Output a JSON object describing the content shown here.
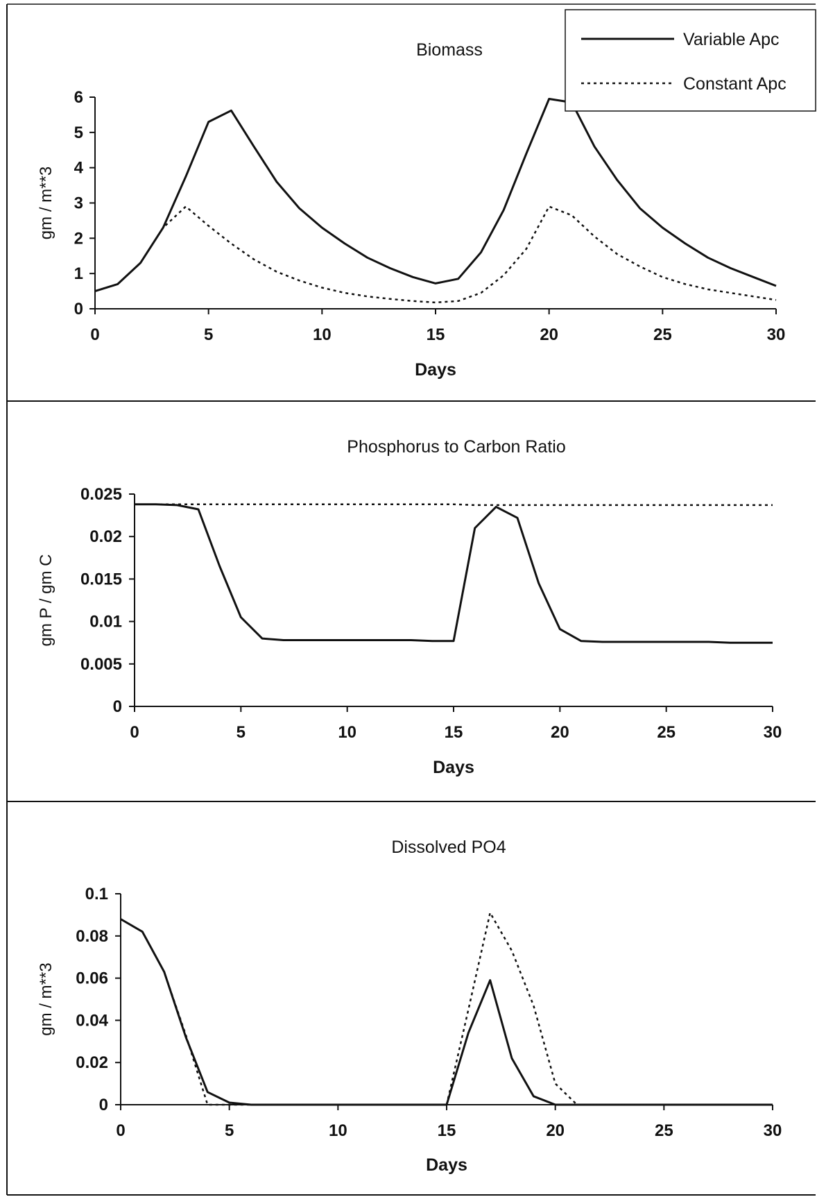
{
  "legend": {
    "items": [
      {
        "label": "Variable Apc",
        "style": "solid"
      },
      {
        "label": "Constant Apc",
        "style": "dotted"
      }
    ]
  },
  "chart_data": [
    {
      "type": "line",
      "title": "Biomass",
      "xlabel": "Days",
      "ylabel": "gm / m**3",
      "xlim": [
        0,
        30
      ],
      "ylim": [
        0,
        6
      ],
      "xticks": [
        0,
        5,
        10,
        15,
        20,
        25,
        30
      ],
      "yticks": [
        0,
        1,
        2,
        3,
        4,
        5,
        6
      ],
      "ytick_labels": [
        "0",
        "1",
        "2",
        "3",
        "4",
        "5",
        "6"
      ],
      "grid": false,
      "legend_position": "top-right",
      "x": [
        0,
        1,
        2,
        3,
        4,
        5,
        6,
        7,
        8,
        9,
        10,
        11,
        12,
        13,
        14,
        15,
        16,
        17,
        18,
        19,
        20,
        21,
        22,
        23,
        24,
        25,
        26,
        27,
        28,
        29,
        30
      ],
      "series": [
        {
          "name": "Variable Apc",
          "style": "solid",
          "values": [
            0.5,
            0.7,
            1.3,
            2.3,
            3.75,
            5.3,
            5.62,
            4.6,
            3.6,
            2.85,
            2.3,
            1.85,
            1.45,
            1.15,
            0.9,
            0.72,
            0.85,
            1.6,
            2.8,
            4.4,
            5.95,
            5.85,
            4.6,
            3.65,
            2.85,
            2.3,
            1.85,
            1.45,
            1.15,
            0.9,
            0.65
          ]
        },
        {
          "name": "Constant Apc",
          "style": "dotted",
          "values": [
            0.5,
            0.7,
            1.3,
            2.3,
            2.9,
            2.35,
            1.85,
            1.4,
            1.05,
            0.8,
            0.6,
            0.45,
            0.35,
            0.28,
            0.22,
            0.18,
            0.22,
            0.45,
            0.95,
            1.7,
            2.9,
            2.65,
            2.05,
            1.55,
            1.2,
            0.9,
            0.7,
            0.55,
            0.45,
            0.35,
            0.25
          ]
        }
      ]
    },
    {
      "type": "line",
      "title": "Phosphorus to Carbon Ratio",
      "xlabel": "Days",
      "ylabel": "gm P / gm C",
      "xlim": [
        0,
        30
      ],
      "ylim": [
        0,
        0.025
      ],
      "xticks": [
        0,
        5,
        10,
        15,
        20,
        25,
        30
      ],
      "yticks": [
        0,
        0.005,
        0.01,
        0.015,
        0.02,
        0.025
      ],
      "ytick_labels": [
        "0",
        "0.005",
        "0.01",
        "0.015",
        "0.02",
        "0.025"
      ],
      "grid": false,
      "x": [
        0,
        1,
        2,
        3,
        4,
        5,
        6,
        7,
        8,
        9,
        10,
        11,
        12,
        13,
        14,
        15,
        16,
        17,
        18,
        19,
        20,
        21,
        22,
        23,
        24,
        25,
        26,
        27,
        28,
        29,
        30
      ],
      "series": [
        {
          "name": "Variable Apc",
          "style": "solid",
          "values": [
            0.0238,
            0.0238,
            0.0237,
            0.0232,
            0.0165,
            0.0105,
            0.008,
            0.0078,
            0.0078,
            0.0078,
            0.0078,
            0.0078,
            0.0078,
            0.0078,
            0.0077,
            0.0077,
            0.021,
            0.0235,
            0.0222,
            0.0145,
            0.0091,
            0.0077,
            0.0076,
            0.0076,
            0.0076,
            0.0076,
            0.0076,
            0.0076,
            0.0075,
            0.0075,
            0.0075
          ]
        },
        {
          "name": "Constant Apc",
          "style": "dotted",
          "values": [
            0.0238,
            0.0238,
            0.0238,
            0.0238,
            0.0238,
            0.0238,
            0.0238,
            0.0238,
            0.0238,
            0.0238,
            0.0238,
            0.0238,
            0.0238,
            0.0238,
            0.0238,
            0.0238,
            0.0237,
            0.0237,
            0.0237,
            0.0237,
            0.0237,
            0.0237,
            0.0237,
            0.0237,
            0.0237,
            0.0237,
            0.0237,
            0.0237,
            0.0237,
            0.0237,
            0.0237
          ]
        }
      ]
    },
    {
      "type": "line",
      "title": "Dissolved PO4",
      "xlabel": "Days",
      "ylabel": "gm / m**3",
      "xlim": [
        0,
        30
      ],
      "ylim": [
        0,
        0.1
      ],
      "xticks": [
        0,
        5,
        10,
        15,
        20,
        25,
        30
      ],
      "yticks": [
        0,
        0.02,
        0.04,
        0.06,
        0.08,
        0.1
      ],
      "ytick_labels": [
        "0",
        "0.02",
        "0.04",
        "0.06",
        "0.08",
        "0.1"
      ],
      "grid": false,
      "x": [
        0,
        1,
        2,
        3,
        4,
        5,
        6,
        7,
        8,
        9,
        10,
        11,
        12,
        13,
        14,
        15,
        16,
        17,
        18,
        19,
        20,
        21,
        22,
        23,
        24,
        25,
        26,
        27,
        28,
        29,
        30
      ],
      "series": [
        {
          "name": "Variable Apc",
          "style": "solid",
          "values": [
            0.088,
            0.082,
            0.063,
            0.032,
            0.006,
            0.001,
            0.0,
            0.0,
            0.0,
            0.0,
            0.0,
            0.0,
            0.0,
            0.0,
            0.0,
            0.0,
            0.034,
            0.059,
            0.022,
            0.004,
            0.0,
            0.0,
            0.0,
            0.0,
            0.0,
            0.0,
            0.0,
            0.0,
            0.0,
            0.0,
            0.0
          ]
        },
        {
          "name": "Constant Apc",
          "style": "dotted",
          "values": [
            0.088,
            0.082,
            0.063,
            0.033,
            0.0,
            0.0,
            0.0,
            0.0,
            0.0,
            0.0,
            0.0,
            0.0,
            0.0,
            0.0,
            0.0,
            0.0,
            0.045,
            0.091,
            0.073,
            0.047,
            0.01,
            0.0,
            0.0,
            0.0,
            0.0,
            0.0,
            0.0,
            0.0,
            0.0,
            0.0,
            0.0
          ]
        }
      ]
    }
  ]
}
